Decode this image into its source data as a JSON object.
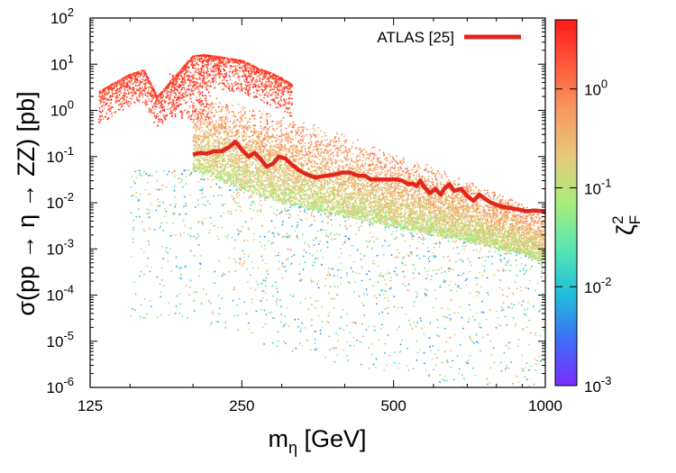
{
  "chart_data": {
    "type": "scatter",
    "title": "",
    "xlabel": {
      "base": "m",
      "sub": "η",
      "rest": " [GeV]"
    },
    "ylabel": "σ(pp → η → ZZ) [pb]",
    "x_scale": "log",
    "y_scale": "log",
    "xlim": [
      125,
      1000
    ],
    "ylim": [
      1e-06,
      100
    ],
    "x_ticks": [
      {
        "value": 125,
        "label": "125"
      },
      {
        "value": 250,
        "label": "250"
      },
      {
        "value": 500,
        "label": "500"
      },
      {
        "value": 1000,
        "label": "1000"
      }
    ],
    "y_ticks": [
      {
        "value": 1e-06,
        "base": "10",
        "exp": "-6"
      },
      {
        "value": 1e-05,
        "base": "10",
        "exp": "-5"
      },
      {
        "value": 0.0001,
        "base": "10",
        "exp": "-4"
      },
      {
        "value": 0.001,
        "base": "10",
        "exp": "-3"
      },
      {
        "value": 0.01,
        "base": "10",
        "exp": "-2"
      },
      {
        "value": 0.1,
        "base": "10",
        "exp": "-1"
      },
      {
        "value": 1,
        "base": "10",
        "exp": "0"
      },
      {
        "value": 10,
        "base": "10",
        "exp": "1"
      },
      {
        "value": 100,
        "base": "10",
        "exp": "2"
      }
    ],
    "colorbar": {
      "label": {
        "base": "ζ",
        "sub": "F",
        "sup": "2"
      },
      "scale": "log",
      "range": [
        0.001,
        5
      ],
      "colors": [
        "#7b2cff",
        "#3f6df5",
        "#1fbfdb",
        "#58e6b0",
        "#a8ec7a",
        "#e6c97b",
        "#f79a62",
        "#ff5a3a",
        "#ff1a1a"
      ],
      "ticks": [
        {
          "value": 0.001,
          "base": "10",
          "exp": "-3"
        },
        {
          "value": 0.01,
          "base": "10",
          "exp": "-2"
        },
        {
          "value": 0.1,
          "base": "10",
          "exp": "-1"
        },
        {
          "value": 1,
          "base": "10",
          "exp": "0"
        }
      ]
    },
    "series": [
      {
        "name": "ATLAS [25]",
        "type": "line",
        "color": "#e2261c",
        "x": [
          200,
          207,
          213,
          220,
          228,
          236,
          243,
          250,
          258,
          265,
          272,
          280,
          288,
          296,
          305,
          315,
          325,
          338,
          350,
          365,
          380,
          395,
          410,
          420,
          430,
          440,
          450,
          460,
          475,
          490,
          505,
          520,
          535,
          545,
          555,
          565,
          575,
          590,
          605,
          620,
          630,
          645,
          660,
          680,
          700,
          720,
          740,
          760,
          780,
          800,
          830,
          860,
          890,
          920,
          950,
          980,
          1000
        ],
        "y": [
          0.11,
          0.12,
          0.115,
          0.13,
          0.13,
          0.16,
          0.21,
          0.14,
          0.1,
          0.12,
          0.09,
          0.06,
          0.07,
          0.1,
          0.09,
          0.065,
          0.05,
          0.04,
          0.035,
          0.038,
          0.04,
          0.045,
          0.045,
          0.04,
          0.038,
          0.038,
          0.032,
          0.032,
          0.032,
          0.032,
          0.032,
          0.03,
          0.025,
          0.026,
          0.023,
          0.03,
          0.022,
          0.016,
          0.02,
          0.015,
          0.02,
          0.025,
          0.018,
          0.02,
          0.014,
          0.011,
          0.015,
          0.012,
          0.01,
          0.009,
          0.008,
          0.0075,
          0.007,
          0.0065,
          0.0068,
          0.0066,
          0.0062
        ]
      }
    ],
    "scatter_regions": {
      "red_band": {
        "x": [
          130,
          140,
          150,
          160,
          170,
          180,
          190,
          200,
          210,
          220,
          230,
          240,
          250,
          260,
          270,
          280,
          290,
          300,
          310,
          315
        ],
        "y": [
          2.5,
          4,
          6,
          7.5,
          2,
          4,
          8,
          15,
          16,
          15,
          14,
          13,
          12,
          10,
          8,
          7,
          6,
          5,
          4,
          3.5
        ]
      },
      "green_band_top": {
        "x": [
          200,
          250,
          300,
          400,
          500,
          600,
          700,
          800,
          900,
          1000
        ],
        "y": [
          3,
          1.5,
          0.8,
          0.3,
          0.12,
          0.06,
          0.03,
          0.018,
          0.01,
          0.007
        ]
      },
      "green_band_bottom": {
        "x": [
          200,
          250,
          300,
          400,
          500,
          600,
          700,
          800,
          900,
          1000
        ],
        "y": [
          0.05,
          0.02,
          0.01,
          0.005,
          0.003,
          0.002,
          0.0015,
          0.001,
          0.0008,
          0.0005
        ]
      }
    }
  }
}
